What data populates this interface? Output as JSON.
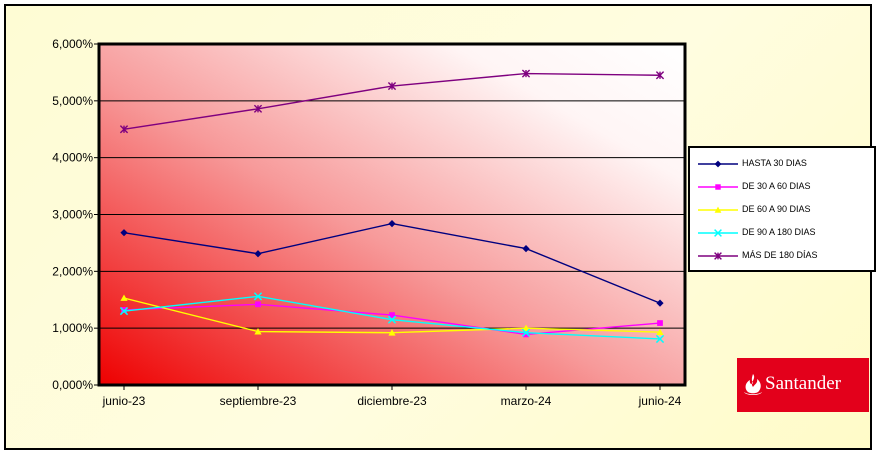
{
  "chart_data": {
    "type": "line",
    "title": "",
    "xlabel": "",
    "ylabel": "",
    "categories": [
      "junio-23",
      "septiembre-23",
      "diciembre-23",
      "marzo-24",
      "junio-24"
    ],
    "ylim": [
      0,
      6
    ],
    "yticks": [
      0,
      1,
      2,
      3,
      4,
      5,
      6
    ],
    "ytick_labels": [
      "0,000%",
      "1,000%",
      "2,000%",
      "3,000%",
      "4,000%",
      "5,000%",
      "6,000%"
    ],
    "grid": true,
    "legend_position": "right",
    "series": [
      {
        "name": "HASTA 30 DIAS",
        "color": "#00007f",
        "marker": "diamond",
        "values": [
          2.68,
          2.31,
          2.84,
          2.4,
          1.44
        ]
      },
      {
        "name": "DE 30 A 60 DIAS",
        "color": "#ff00ff",
        "marker": "square",
        "values": [
          1.32,
          1.42,
          1.23,
          0.89,
          1.09
        ]
      },
      {
        "name": "DE 60 A 90 DIAS",
        "color": "#ffff00",
        "marker": "triangle",
        "values": [
          1.53,
          0.94,
          0.92,
          1.0,
          0.93
        ]
      },
      {
        "name": "DE 90 A 180 DIAS",
        "color": "#00ffff",
        "marker": "x",
        "values": [
          1.3,
          1.56,
          1.15,
          0.92,
          0.81
        ]
      },
      {
        "name": "MÁS DE 180 DÍAS",
        "color": "#7f007f",
        "marker": "star",
        "values": [
          4.5,
          4.86,
          5.26,
          5.48,
          5.45
        ]
      }
    ]
  },
  "logo": {
    "text": "Santander",
    "color": "#e3001b"
  }
}
